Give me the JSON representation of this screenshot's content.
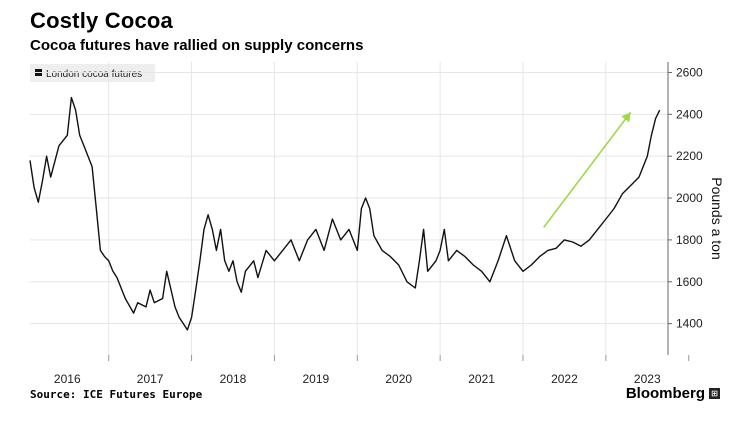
{
  "title": "Costly Cocoa",
  "subtitle": "Cocoa futures have rallied on supply concerns",
  "source": "Source: ICE Futures Europe",
  "brand": "Bloomberg",
  "colors": {
    "series": "#111111",
    "grid": "#e6e6e6",
    "arrow": "#9ed94a",
    "legend_bg": "#eeeeee"
  },
  "chart_data": {
    "type": "line",
    "title": "Costly Cocoa",
    "subtitle": "Cocoa futures have rallied on supply concerns",
    "xlabel": "",
    "ylabel": "Pounds a ton",
    "xlim": [
      2015.55,
      2023.25
    ],
    "ylim": [
      1250,
      2650
    ],
    "yticks": [
      1400,
      1600,
      1800,
      2000,
      2200,
      2400,
      2600
    ],
    "xticks": [
      "2016",
      "2017",
      "2018",
      "2019",
      "2020",
      "2021",
      "2022",
      "2023"
    ],
    "legend": "London cocoa futures",
    "series": [
      {
        "name": "London cocoa futures",
        "x": [
          2015.55,
          2015.6,
          2015.65,
          2015.7,
          2015.75,
          2015.8,
          2015.9,
          2016.0,
          2016.05,
          2016.1,
          2016.15,
          2016.2,
          2016.3,
          2016.35,
          2016.4,
          2016.45,
          2016.5,
          2016.55,
          2016.6,
          2016.7,
          2016.8,
          2016.85,
          2016.95,
          2017.0,
          2017.05,
          2017.15,
          2017.2,
          2017.3,
          2017.35,
          2017.45,
          2017.5,
          2017.55,
          2017.6,
          2017.65,
          2017.7,
          2017.75,
          2017.8,
          2017.85,
          2017.9,
          2017.95,
          2018.0,
          2018.05,
          2018.1,
          2018.15,
          2018.25,
          2018.3,
          2018.4,
          2018.5,
          2018.6,
          2018.7,
          2018.8,
          2018.9,
          2019.0,
          2019.1,
          2019.2,
          2019.3,
          2019.4,
          2019.5,
          2019.55,
          2019.6,
          2019.65,
          2019.7,
          2019.8,
          2019.9,
          2020.0,
          2020.1,
          2020.2,
          2020.25,
          2020.3,
          2020.35,
          2020.45,
          2020.5,
          2020.55,
          2020.6,
          2020.7,
          2020.8,
          2020.9,
          2021.0,
          2021.1,
          2021.2,
          2021.3,
          2021.4,
          2021.5,
          2021.6,
          2021.7,
          2021.8,
          2021.9,
          2022.0,
          2022.1,
          2022.2,
          2022.3,
          2022.4,
          2022.5,
          2022.6,
          2022.7,
          2022.8,
          2022.9,
          2023.0,
          2023.05,
          2023.1,
          2023.15
        ],
        "values": [
          2180,
          2050,
          1980,
          2080,
          2200,
          2100,
          2250,
          2300,
          2480,
          2420,
          2300,
          2250,
          2150,
          1950,
          1750,
          1720,
          1700,
          1650,
          1620,
          1520,
          1450,
          1500,
          1480,
          1560,
          1500,
          1520,
          1650,
          1480,
          1430,
          1370,
          1430,
          1560,
          1700,
          1850,
          1920,
          1850,
          1750,
          1850,
          1700,
          1650,
          1700,
          1600,
          1550,
          1650,
          1700,
          1620,
          1750,
          1700,
          1750,
          1800,
          1700,
          1800,
          1850,
          1750,
          1900,
          1800,
          1850,
          1750,
          1950,
          2000,
          1950,
          1820,
          1750,
          1720,
          1680,
          1600,
          1570,
          1700,
          1850,
          1650,
          1700,
          1750,
          1850,
          1700,
          1750,
          1720,
          1680,
          1650,
          1600,
          1700,
          1820,
          1700,
          1650,
          1680,
          1720,
          1750,
          1760,
          1800,
          1790,
          1770,
          1800,
          1850,
          1900,
          1950,
          2020,
          2060,
          2100,
          2200,
          2300,
          2380,
          2420
        ]
      }
    ],
    "annotations": [
      {
        "type": "arrow",
        "from": [
          2021.75,
          1860
        ],
        "to": [
          2022.8,
          2410
        ]
      }
    ]
  }
}
